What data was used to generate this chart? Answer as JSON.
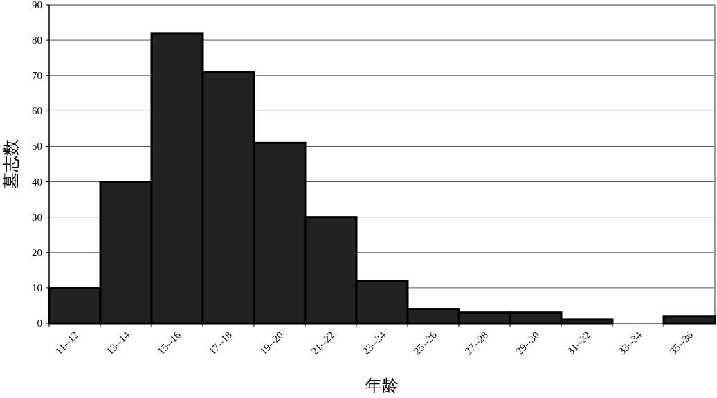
{
  "chart_data": {
    "type": "bar",
    "xlabel": "年龄",
    "ylabel": "墓志数",
    "categories": [
      "11--12",
      "13--14",
      "15--16",
      "17--18",
      "19--20",
      "21--22",
      "23--24",
      "25--26",
      "27--28",
      "29--30",
      "31--32",
      "33--34",
      "35--36"
    ],
    "values": [
      10,
      40,
      82,
      71,
      51,
      30,
      12,
      4,
      3,
      3,
      1,
      0,
      2
    ],
    "color": "#222222",
    "ylim": [
      0,
      90
    ],
    "yticks": [
      0,
      10,
      20,
      30,
      40,
      50,
      60,
      70,
      80,
      90
    ],
    "grid": "y"
  }
}
